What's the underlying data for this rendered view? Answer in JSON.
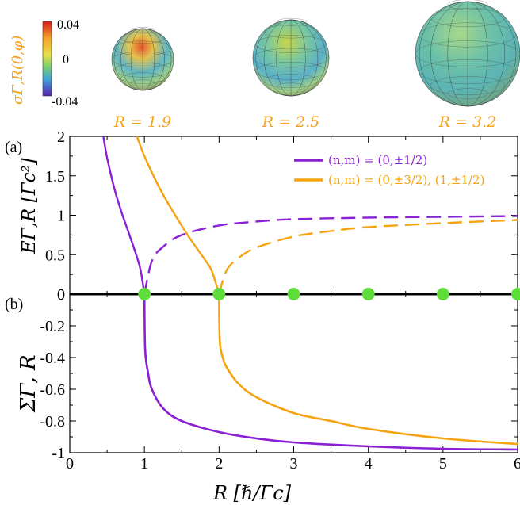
{
  "colors": {
    "purple": "#8a1fd4",
    "orange": "#f5a30f",
    "marker": "#5ddc3a",
    "zero_line": "#000000"
  },
  "colorbar": {
    "label": "σΓ,R(θ,φ)",
    "max": "0.04",
    "mid": "0",
    "min": "-0.04"
  },
  "spheres": [
    {
      "caption": "R = 1.9",
      "R": 1.9
    },
    {
      "caption": "R = 2.5",
      "R": 2.5
    },
    {
      "caption": "R = 3.2",
      "R": 3.2
    }
  ],
  "panel_a": {
    "tag": "(a)",
    "ylabel": "EΓ,R [Γc²]",
    "yticks": [
      "0",
      "0.5",
      "1",
      "1.5",
      "2"
    ],
    "legend": [
      {
        "label": "(n,m) = (0,±1/2)",
        "color": "#8a1fd4"
      },
      {
        "label": "(n,m) = (0,±3/2), (1,±1/2)",
        "color": "#f5a30f"
      }
    ]
  },
  "panel_b": {
    "tag": "(b)",
    "ylabel": "ΣΓ, R",
    "yticks": [
      "0",
      "-0.2",
      "-0.4",
      "-0.6",
      "-0.8",
      "-1"
    ]
  },
  "xaxis": {
    "label": "R [ℏ/Γc]",
    "ticks": [
      "0",
      "1",
      "2",
      "3",
      "4",
      "5",
      "6"
    ]
  },
  "chart_data": [
    {
      "type": "line",
      "panel": "a",
      "xlim": [
        0,
        6
      ],
      "ylim": [
        0,
        2
      ],
      "series": [
        {
          "name": "(n,m) = (0,±1/2)",
          "style": "solid",
          "x": [
            0.45,
            0.5,
            0.6,
            0.7,
            0.8,
            0.9,
            0.95,
            1.0
          ],
          "y": [
            2.0,
            1.73,
            1.33,
            1.02,
            0.75,
            0.47,
            0.3,
            0.0
          ]
        },
        {
          "name": "(n,m) = (0,±1/2)",
          "style": "dashed",
          "x": [
            1.0,
            1.1,
            1.25,
            1.5,
            2.0,
            2.5,
            3.0,
            4.0,
            5.0,
            6.0
          ],
          "y": [
            0.0,
            0.42,
            0.6,
            0.75,
            0.87,
            0.92,
            0.95,
            0.97,
            0.98,
            0.99
          ]
        },
        {
          "name": "(n,m) = (0,±3/2), (1,±1/2)",
          "style": "solid",
          "x": [
            0.9,
            1.0,
            1.2,
            1.4,
            1.6,
            1.8,
            1.9,
            2.0
          ],
          "y": [
            2.0,
            1.75,
            1.35,
            1.02,
            0.72,
            0.45,
            0.3,
            0.0
          ]
        },
        {
          "name": "(n,m) = (0,±3/2), (1,±1/2)",
          "style": "dashed",
          "x": [
            2.0,
            2.1,
            2.25,
            2.5,
            3.0,
            3.5,
            4.0,
            5.0,
            6.0
          ],
          "y": [
            0.0,
            0.3,
            0.45,
            0.59,
            0.73,
            0.8,
            0.85,
            0.9,
            0.94
          ]
        }
      ],
      "markers": {
        "x": [
          1,
          2,
          3,
          4,
          5,
          6
        ],
        "y": [
          0,
          0,
          0,
          0,
          0,
          0
        ]
      }
    },
    {
      "type": "line",
      "panel": "b",
      "xlim": [
        0,
        6
      ],
      "ylim": [
        -1,
        0
      ],
      "series": [
        {
          "name": "(n,m) = (0,±1/2)",
          "style": "solid",
          "x": [
            1.0,
            1.01,
            1.05,
            1.1,
            1.25,
            1.5,
            2.0,
            2.5,
            3.0,
            4.0,
            5.0,
            6.0
          ],
          "y": [
            0.0,
            -0.35,
            -0.5,
            -0.6,
            -0.72,
            -0.8,
            -0.87,
            -0.91,
            -0.935,
            -0.96,
            -0.975,
            -0.98
          ]
        },
        {
          "name": "(n,m) = (0,±3/2), (1,±1/2)",
          "style": "solid",
          "x": [
            2.0,
            2.01,
            2.05,
            2.1,
            2.25,
            2.5,
            3.0,
            3.5,
            4.0,
            5.0,
            6.0
          ],
          "y": [
            0.0,
            -0.3,
            -0.4,
            -0.46,
            -0.56,
            -0.65,
            -0.75,
            -0.8,
            -0.85,
            -0.91,
            -0.945
          ]
        }
      ],
      "markers": {
        "x": [
          1,
          2,
          3,
          4,
          5,
          6
        ],
        "y": [
          0,
          0,
          0,
          0,
          0,
          0
        ]
      }
    }
  ]
}
